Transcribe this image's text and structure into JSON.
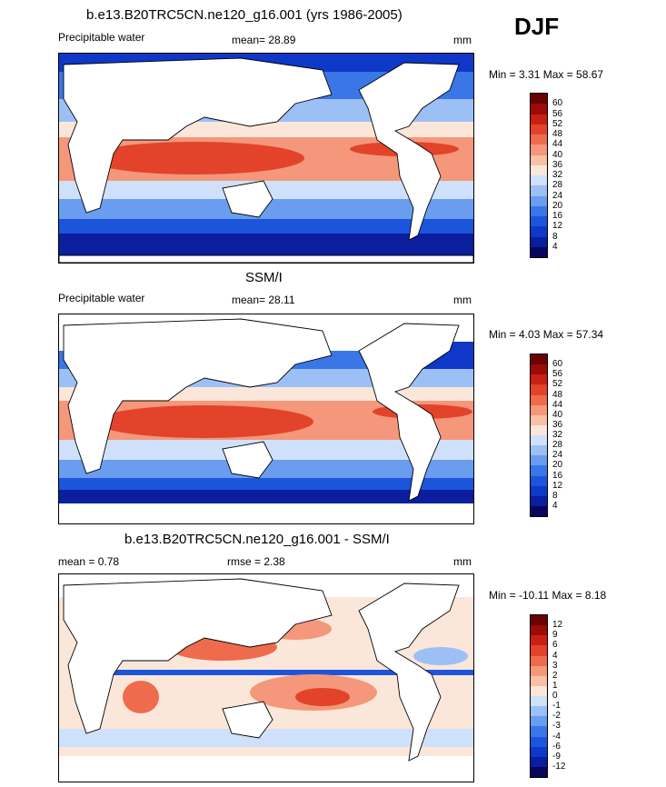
{
  "season": "DJF",
  "units": "mm",
  "panels": [
    {
      "title": "b.e13.B20TRC5CN.ne120_g16.001 (yrs 1986-2005)",
      "left_label": "Precipitable water",
      "mean_text": "mean=  28.89",
      "unit_text": "mm",
      "minmax_text": "Min =   3.31 Max =  58.67"
    },
    {
      "title": "SSM/I",
      "left_label": "Precipitable water",
      "mean_text": "mean=  28.11",
      "unit_text": "mm",
      "minmax_text": "Min =   4.03 Max =  57.34"
    },
    {
      "title": "b.e13.B20TRC5CN.ne120_g16.001 - SSM/I",
      "left_label": "mean =   0.78",
      "mean_text": "rmse =   2.38",
      "unit_text": "mm",
      "minmax_text": "Min = -10.11 Max =   8.18"
    }
  ],
  "chart_data": [
    {
      "type": "heatmap",
      "title": "b.e13.B20TRC5CN.ne120_g16.001 (yrs 1986-2005)",
      "variable": "Precipitable water",
      "units": "mm",
      "mean": 28.89,
      "min": 3.31,
      "max": 58.67,
      "colorbar_levels": [
        4,
        8,
        12,
        16,
        20,
        24,
        28,
        32,
        36,
        40,
        44,
        48,
        52,
        56,
        60
      ],
      "colorbar_colors": [
        "#07075e",
        "#0a1e9e",
        "#0f38c8",
        "#1c55dc",
        "#3a76e6",
        "#6a9cef",
        "#9cc0f5",
        "#cfe1fa",
        "#fbe6da",
        "#f8c0a6",
        "#f5977a",
        "#ee6b4d",
        "#e2432a",
        "#c92014",
        "#9c0a0a",
        "#6a0202"
      ]
    },
    {
      "type": "heatmap",
      "title": "SSM/I",
      "variable": "Precipitable water",
      "units": "mm",
      "mean": 28.11,
      "min": 4.03,
      "max": 57.34,
      "colorbar_levels": [
        4,
        8,
        12,
        16,
        20,
        24,
        28,
        32,
        36,
        40,
        44,
        48,
        52,
        56,
        60
      ],
      "colorbar_colors": [
        "#07075e",
        "#0a1e9e",
        "#0f38c8",
        "#1c55dc",
        "#3a76e6",
        "#6a9cef",
        "#9cc0f5",
        "#cfe1fa",
        "#fbe6da",
        "#f8c0a6",
        "#f5977a",
        "#ee6b4d",
        "#e2432a",
        "#c92014",
        "#9c0a0a",
        "#6a0202"
      ]
    },
    {
      "type": "heatmap",
      "title": "b.e13.B20TRC5CN.ne120_g16.001 - SSM/I",
      "units": "mm",
      "mean": 0.78,
      "rmse": 2.38,
      "min": -10.11,
      "max": 8.18,
      "colorbar_levels": [
        -12,
        -9,
        -6,
        -4,
        -3,
        -2,
        -1,
        0,
        1,
        2,
        3,
        4,
        6,
        9,
        12
      ],
      "colorbar_colors": [
        "#07075e",
        "#0a1e9e",
        "#0f38c8",
        "#1c55dc",
        "#3a76e6",
        "#6a9cef",
        "#9cc0f5",
        "#cfe1fa",
        "#fbe6da",
        "#f8c0a6",
        "#f5977a",
        "#ee6b4d",
        "#e2432a",
        "#c92014",
        "#9c0a0a",
        "#6a0202"
      ]
    }
  ]
}
